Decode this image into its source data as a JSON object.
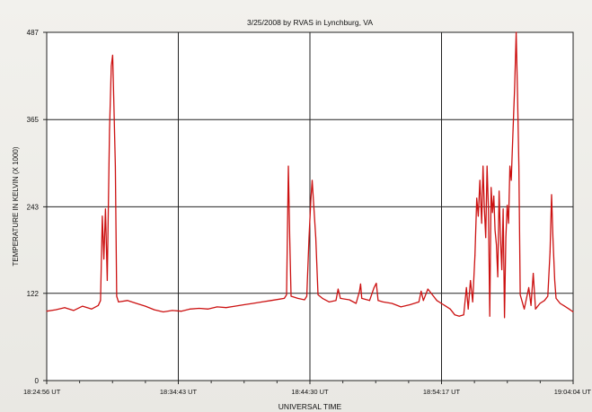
{
  "chart_data": {
    "type": "line",
    "title": "3/25/2008 by RVAS in Lynchburg, VA",
    "xlabel": "UNIVERSAL TIME",
    "ylabel": "TEMPERATURE IN KELVIN (X 1000)",
    "ylim": [
      0,
      487
    ],
    "xlim": [
      0,
      2348
    ],
    "yticks": [
      0,
      122,
      243,
      365,
      487
    ],
    "xticks": [
      {
        "x": 0,
        "label": "18:24:56 UT"
      },
      {
        "x": 587,
        "label": "18:34:43 UT"
      },
      {
        "x": 1174,
        "label": "18:44:30 UT"
      },
      {
        "x": 1761,
        "label": "18:54:17 UT"
      },
      {
        "x": 2348,
        "label": "19:04:04 UT"
      }
    ],
    "grid": true,
    "line_color": "#cc1111",
    "series": [
      {
        "values": [
          [
            0,
            97
          ],
          [
            40,
            99
          ],
          [
            80,
            102
          ],
          [
            120,
            98
          ],
          [
            160,
            104
          ],
          [
            200,
            100
          ],
          [
            230,
            105
          ],
          [
            240,
            112
          ],
          [
            248,
            230
          ],
          [
            255,
            170
          ],
          [
            262,
            240
          ],
          [
            270,
            140
          ],
          [
            280,
            350
          ],
          [
            288,
            440
          ],
          [
            294,
            455
          ],
          [
            300,
            380
          ],
          [
            306,
            300
          ],
          [
            312,
            118
          ],
          [
            320,
            110
          ],
          [
            360,
            112
          ],
          [
            400,
            108
          ],
          [
            440,
            104
          ],
          [
            480,
            99
          ],
          [
            520,
            96
          ],
          [
            560,
            98
          ],
          [
            600,
            97
          ],
          [
            640,
            100
          ],
          [
            680,
            101
          ],
          [
            720,
            100
          ],
          [
            760,
            103
          ],
          [
            800,
            102
          ],
          [
            840,
            104
          ],
          [
            880,
            106
          ],
          [
            920,
            108
          ],
          [
            960,
            110
          ],
          [
            1000,
            112
          ],
          [
            1040,
            114
          ],
          [
            1060,
            115
          ],
          [
            1070,
            120
          ],
          [
            1078,
            300
          ],
          [
            1084,
            200
          ],
          [
            1090,
            118
          ],
          [
            1120,
            115
          ],
          [
            1150,
            113
          ],
          [
            1160,
            118
          ],
          [
            1170,
            200
          ],
          [
            1178,
            252
          ],
          [
            1184,
            280
          ],
          [
            1192,
            240
          ],
          [
            1200,
            200
          ],
          [
            1210,
            120
          ],
          [
            1230,
            115
          ],
          [
            1260,
            110
          ],
          [
            1290,
            112
          ],
          [
            1300,
            128
          ],
          [
            1310,
            115
          ],
          [
            1350,
            113
          ],
          [
            1380,
            108
          ],
          [
            1395,
            125
          ],
          [
            1400,
            135
          ],
          [
            1405,
            115
          ],
          [
            1440,
            112
          ],
          [
            1460,
            130
          ],
          [
            1470,
            136
          ],
          [
            1478,
            112
          ],
          [
            1500,
            110
          ],
          [
            1540,
            108
          ],
          [
            1580,
            103
          ],
          [
            1620,
            106
          ],
          [
            1660,
            110
          ],
          [
            1670,
            125
          ],
          [
            1680,
            112
          ],
          [
            1700,
            128
          ],
          [
            1720,
            120
          ],
          [
            1740,
            112
          ],
          [
            1760,
            108
          ],
          [
            1780,
            104
          ],
          [
            1800,
            100
          ],
          [
            1820,
            92
          ],
          [
            1840,
            90
          ],
          [
            1860,
            92
          ],
          [
            1872,
            130
          ],
          [
            1880,
            100
          ],
          [
            1890,
            140
          ],
          [
            1900,
            110
          ],
          [
            1910,
            175
          ],
          [
            1918,
            255
          ],
          [
            1925,
            230
          ],
          [
            1932,
            280
          ],
          [
            1940,
            220
          ],
          [
            1946,
            300
          ],
          [
            1952,
            240
          ],
          [
            1958,
            200
          ],
          [
            1964,
            300
          ],
          [
            1970,
            240
          ],
          [
            1976,
            90
          ],
          [
            1982,
            270
          ],
          [
            1988,
            235
          ],
          [
            1994,
            258
          ],
          [
            2000,
            210
          ],
          [
            2006,
            190
          ],
          [
            2012,
            145
          ],
          [
            2018,
            265
          ],
          [
            2024,
            200
          ],
          [
            2030,
            155
          ],
          [
            2036,
            240
          ],
          [
            2042,
            88
          ],
          [
            2048,
            200
          ],
          [
            2054,
            245
          ],
          [
            2060,
            220
          ],
          [
            2066,
            300
          ],
          [
            2072,
            280
          ],
          [
            2080,
            350
          ],
          [
            2087,
            410
          ],
          [
            2094,
            487
          ],
          [
            2100,
            400
          ],
          [
            2106,
            300
          ],
          [
            2112,
            120
          ],
          [
            2130,
            100
          ],
          [
            2150,
            130
          ],
          [
            2160,
            105
          ],
          [
            2170,
            150
          ],
          [
            2180,
            100
          ],
          [
            2200,
            108
          ],
          [
            2220,
            112
          ],
          [
            2235,
            118
          ],
          [
            2245,
            180
          ],
          [
            2252,
            260
          ],
          [
            2258,
            200
          ],
          [
            2266,
            140
          ],
          [
            2272,
            115
          ],
          [
            2290,
            108
          ],
          [
            2310,
            104
          ],
          [
            2330,
            100
          ],
          [
            2348,
            96
          ]
        ]
      }
    ]
  }
}
